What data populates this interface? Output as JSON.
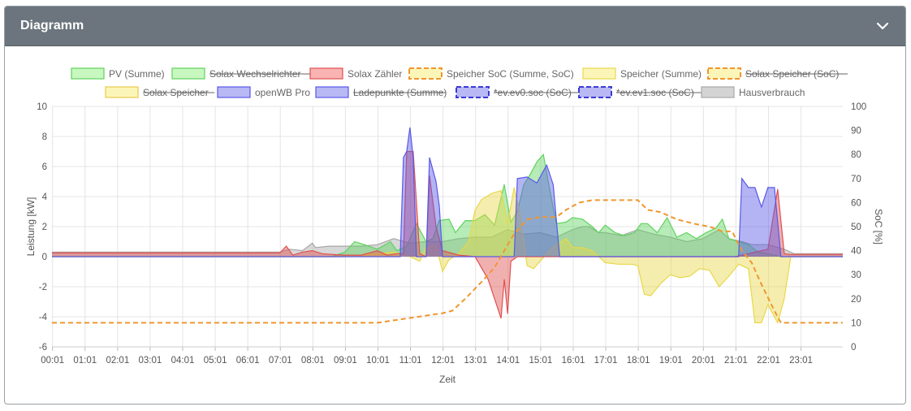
{
  "card": {
    "title": "Diagramm",
    "toggle_icon": "chevron-down-icon"
  },
  "colors": {
    "header_bg": "#6c757d",
    "pv": "#5fd35f",
    "speicher": "#e8d84a",
    "soc": "#f0962e",
    "zaehler": "#e05050",
    "openwb": "#5858e8",
    "hausverbrauch": "#a8a8a8"
  },
  "chart_data": {
    "type": "area",
    "xlabel": "Zeit",
    "ylabel": "Leistung [kW]",
    "y2label": "SoC [%]",
    "ylim": [
      -6,
      10
    ],
    "y2lim": [
      0,
      100
    ],
    "yticks": [
      "10",
      "8",
      "6",
      "4",
      "2",
      "0",
      "-2",
      "-4",
      "-6"
    ],
    "y2ticks": [
      "100",
      "90",
      "80",
      "70",
      "60",
      "50",
      "40",
      "30",
      "20",
      "10",
      "0"
    ],
    "x_ticks": [
      "00:01",
      "01:01",
      "02:01",
      "03:01",
      "04:01",
      "05:01",
      "06:01",
      "07:01",
      "08:01",
      "09:01",
      "10:01",
      "11:01",
      "12:01",
      "13:01",
      "14:01",
      "15:01",
      "16:01",
      "17:01",
      "18:01",
      "19:01",
      "20:01",
      "21:01",
      "22:01",
      "23:01"
    ],
    "x_range_hours": [
      0,
      24.3
    ],
    "grid": true,
    "legend": [
      {
        "label": "PV (Summe)",
        "fill": "#c8f7c0",
        "stroke": "#5fd35f",
        "dashed": false,
        "hidden": false
      },
      {
        "label": "Solax Wechselrichter",
        "fill": "#c8f7c0",
        "stroke": "#5fd35f",
        "dashed": false,
        "hidden": true
      },
      {
        "label": "Solax Zähler",
        "fill": "#f9b3b3",
        "stroke": "#e05050",
        "dashed": false,
        "hidden": false
      },
      {
        "label": "Speicher SoC (Summe, SoC)",
        "fill": "#fbf6b8",
        "stroke": "#f0962e",
        "dashed": true,
        "hidden": false
      },
      {
        "label": "Speicher (Summe)",
        "fill": "#fbf6b8",
        "stroke": "#e8d84a",
        "dashed": false,
        "hidden": false
      },
      {
        "label": "Solax Speicher (SoC)",
        "fill": "#fbf6b8",
        "stroke": "#f0962e",
        "dashed": true,
        "hidden": true
      },
      {
        "label": "Solax Speicher",
        "fill": "#fbf6b8",
        "stroke": "#e8c84a",
        "dashed": false,
        "hidden": true
      },
      {
        "label": "openWB Pro",
        "fill": "#b8b8f4",
        "stroke": "#5858e8",
        "dashed": false,
        "hidden": false
      },
      {
        "label": "Ladepunkte (Summe)",
        "fill": "#b8b8f4",
        "stroke": "#5858e8",
        "dashed": false,
        "hidden": true
      },
      {
        "label": "*ev.ev0.soc (SoC)",
        "fill": "#b8b8f4",
        "stroke": "#3a3ad8",
        "dashed": true,
        "hidden": true
      },
      {
        "label": "*ev.ev1.soc (SoC)",
        "fill": "#b8b8f4",
        "stroke": "#3a3ad8",
        "dashed": true,
        "hidden": true
      },
      {
        "label": "Hausverbrauch",
        "fill": "#d4d4d4",
        "stroke": "#a8a8a8",
        "dashed": false,
        "hidden": false
      }
    ],
    "series": [
      {
        "name": "Hausverbrauch",
        "unit": "kW",
        "color": "#a8a8a8",
        "points": [
          [
            0,
            0.3
          ],
          [
            7,
            0.3
          ],
          [
            7.3,
            0.5
          ],
          [
            7.7,
            0.4
          ],
          [
            8.0,
            0.9
          ],
          [
            8.1,
            0.6
          ],
          [
            8.5,
            0.7
          ],
          [
            9.0,
            0.7
          ],
          [
            9.5,
            0.7
          ],
          [
            10,
            0.8
          ],
          [
            10.5,
            1.2
          ],
          [
            11,
            0.9
          ],
          [
            11.5,
            1.0
          ],
          [
            12,
            1.0
          ],
          [
            12.5,
            1.2
          ],
          [
            13,
            1.3
          ],
          [
            13.5,
            1.3
          ],
          [
            14,
            1.8
          ],
          [
            14.5,
            1.5
          ],
          [
            15,
            1.6
          ],
          [
            15.5,
            1.3
          ],
          [
            16,
            1.8
          ],
          [
            16.3,
            2.0
          ],
          [
            16.5,
            2.0
          ],
          [
            16.8,
            1.6
          ],
          [
            17,
            1.6
          ],
          [
            17.5,
            1.4
          ],
          [
            18,
            1.8
          ],
          [
            18.5,
            1.5
          ],
          [
            19,
            1.3
          ],
          [
            19.5,
            1.0
          ],
          [
            20,
            1.2
          ],
          [
            20.5,
            1.8
          ],
          [
            20.8,
            1.2
          ],
          [
            21.2,
            1.0
          ],
          [
            21.5,
            0.8
          ],
          [
            22,
            0.8
          ],
          [
            22.5,
            0.5
          ],
          [
            22.8,
            0.2
          ],
          [
            24.3,
            0.2
          ]
        ]
      },
      {
        "name": "PV (Summe)",
        "unit": "kW",
        "color": "#5fd35f",
        "points": [
          [
            0,
            0
          ],
          [
            8.6,
            0
          ],
          [
            9.0,
            0.3
          ],
          [
            9.3,
            1.0
          ],
          [
            9.6,
            0.8
          ],
          [
            10,
            0.5
          ],
          [
            10.4,
            1.0
          ],
          [
            10.6,
            0.4
          ],
          [
            10.9,
            0.7
          ],
          [
            11.2,
            2.2
          ],
          [
            11.5,
            1.0
          ],
          [
            11.7,
            1.2
          ],
          [
            11.9,
            2.4
          ],
          [
            12.2,
            2.5
          ],
          [
            12.4,
            1.6
          ],
          [
            12.7,
            2.4
          ],
          [
            13.0,
            2.4
          ],
          [
            13.3,
            2.8
          ],
          [
            13.6,
            2.1
          ],
          [
            13.9,
            4.8
          ],
          [
            14.1,
            2.3
          ],
          [
            14.3,
            3.0
          ],
          [
            14.5,
            4.8
          ],
          [
            14.7,
            5.5
          ],
          [
            14.9,
            6.3
          ],
          [
            15.1,
            6.8
          ],
          [
            15.3,
            4.4
          ],
          [
            15.5,
            2.2
          ],
          [
            15.8,
            2.3
          ],
          [
            16.0,
            2.6
          ],
          [
            16.3,
            2.5
          ],
          [
            16.6,
            2.0
          ],
          [
            16.8,
            1.6
          ],
          [
            17.0,
            2.1
          ],
          [
            17.3,
            1.6
          ],
          [
            17.6,
            1.4
          ],
          [
            17.9,
            1.6
          ],
          [
            18.1,
            2.2
          ],
          [
            18.3,
            2.2
          ],
          [
            18.6,
            1.6
          ],
          [
            18.9,
            2.6
          ],
          [
            19.2,
            1.3
          ],
          [
            19.5,
            1.6
          ],
          [
            19.8,
            1.2
          ],
          [
            20.1,
            1.6
          ],
          [
            20.4,
            1.9
          ],
          [
            20.6,
            2.5
          ],
          [
            20.8,
            1.2
          ],
          [
            21.1,
            1.0
          ],
          [
            21.4,
            0.8
          ],
          [
            21.7,
            0.3
          ],
          [
            22.0,
            0.2
          ],
          [
            22.4,
            0
          ],
          [
            24.3,
            0
          ]
        ]
      },
      {
        "name": "Speicher (Summe)",
        "unit": "kW",
        "color": "#e8d84a",
        "points": [
          [
            0,
            0
          ],
          [
            9.0,
            0
          ],
          [
            9.5,
            0.1
          ],
          [
            10,
            0.2
          ],
          [
            10.5,
            0.3
          ],
          [
            11,
            0
          ],
          [
            11.3,
            -0.3
          ],
          [
            11.5,
            0.6
          ],
          [
            11.8,
            0.8
          ],
          [
            12,
            -1.0
          ],
          [
            12.2,
            -0.2
          ],
          [
            12.5,
            0.2
          ],
          [
            12.8,
            1.0
          ],
          [
            13.0,
            3.1
          ],
          [
            13.2,
            3.8
          ],
          [
            13.5,
            4.2
          ],
          [
            13.8,
            4.4
          ],
          [
            14.0,
            2.2
          ],
          [
            14.2,
            4.6
          ],
          [
            14.4,
            2.6
          ],
          [
            14.6,
            -0.6
          ],
          [
            14.8,
            -0.8
          ],
          [
            15.0,
            -0.3
          ],
          [
            15.2,
            0.2
          ],
          [
            15.5,
            0.8
          ],
          [
            15.8,
            1.2
          ],
          [
            16.0,
            0.6
          ],
          [
            16.3,
            0.6
          ],
          [
            16.6,
            0.4
          ],
          [
            17.0,
            -0.4
          ],
          [
            17.4,
            -0.5
          ],
          [
            17.8,
            -0.5
          ],
          [
            18.0,
            -0.6
          ],
          [
            18.2,
            -2.5
          ],
          [
            18.4,
            -2.6
          ],
          [
            18.7,
            -1.8
          ],
          [
            19.0,
            -1.2
          ],
          [
            19.3,
            -1.4
          ],
          [
            19.6,
            -1.3
          ],
          [
            19.9,
            -0.8
          ],
          [
            20.2,
            -0.9
          ],
          [
            20.5,
            -2.0
          ],
          [
            20.8,
            -1.3
          ],
          [
            21.1,
            -0.5
          ],
          [
            21.4,
            -0.8
          ],
          [
            21.6,
            -4.4
          ],
          [
            21.8,
            -4.4
          ],
          [
            22.0,
            -3.2
          ],
          [
            22.3,
            -4.4
          ],
          [
            22.5,
            -2.8
          ],
          [
            22.7,
            0
          ],
          [
            24.3,
            0
          ]
        ]
      },
      {
        "name": "Solax Zähler",
        "unit": "kW",
        "color": "#e05050",
        "points": [
          [
            0,
            0.25
          ],
          [
            7.0,
            0.25
          ],
          [
            7.2,
            0.7
          ],
          [
            7.4,
            0.1
          ],
          [
            7.7,
            0.3
          ],
          [
            8.0,
            0.4
          ],
          [
            8.3,
            0.2
          ],
          [
            8.6,
            0.15
          ],
          [
            9.0,
            0.1
          ],
          [
            9.5,
            0.1
          ],
          [
            10,
            0.4
          ],
          [
            10.3,
            0.1
          ],
          [
            10.6,
            0.2
          ],
          [
            10.8,
            0.2
          ],
          [
            10.9,
            7.0
          ],
          [
            11.1,
            7.0
          ],
          [
            11.3,
            0.2
          ],
          [
            11.5,
            0
          ],
          [
            11.6,
            5.4
          ],
          [
            11.8,
            2.0
          ],
          [
            12.0,
            0.4
          ],
          [
            12.5,
            0.1
          ],
          [
            13.0,
            0
          ],
          [
            13.4,
            -1.5
          ],
          [
            13.6,
            -2.8
          ],
          [
            13.8,
            -4.1
          ],
          [
            13.9,
            -1.5
          ],
          [
            14.0,
            -3.8
          ],
          [
            14.1,
            -0.3
          ],
          [
            14.3,
            0
          ],
          [
            15,
            0
          ],
          [
            16,
            0
          ],
          [
            17,
            0
          ],
          [
            18,
            0
          ],
          [
            19,
            0
          ],
          [
            20,
            0
          ],
          [
            21,
            0
          ],
          [
            22.0,
            0.5
          ],
          [
            22.3,
            4.5
          ],
          [
            22.5,
            0.2
          ],
          [
            22.7,
            0.15
          ],
          [
            24.3,
            0.15
          ]
        ]
      },
      {
        "name": "openWB Pro",
        "unit": "kW",
        "color": "#5858e8",
        "points": [
          [
            0,
            0
          ],
          [
            10.7,
            0
          ],
          [
            10.8,
            6.6
          ],
          [
            10.9,
            7.0
          ],
          [
            11.0,
            8.6
          ],
          [
            11.1,
            6.6
          ],
          [
            11.2,
            0
          ],
          [
            11.5,
            0
          ],
          [
            11.6,
            6.6
          ],
          [
            11.8,
            5.0
          ],
          [
            11.9,
            3.4
          ],
          [
            12.0,
            0
          ],
          [
            14.2,
            0
          ],
          [
            14.3,
            5.2
          ],
          [
            14.6,
            5.3
          ],
          [
            14.9,
            4.9
          ],
          [
            15.2,
            6.1
          ],
          [
            15.4,
            4.8
          ],
          [
            15.6,
            0
          ],
          [
            21.1,
            0
          ],
          [
            21.2,
            5.2
          ],
          [
            21.4,
            4.6
          ],
          [
            21.6,
            4.6
          ],
          [
            21.8,
            3.3
          ],
          [
            22.0,
            4.6
          ],
          [
            22.2,
            4.6
          ],
          [
            22.4,
            0
          ],
          [
            24.3,
            0
          ]
        ]
      },
      {
        "name": "Speicher SoC (Summe, SoC)",
        "unit": "%",
        "color": "#f0962e",
        "dashed": true,
        "points": [
          [
            0,
            10
          ],
          [
            10,
            10
          ],
          [
            10.5,
            11
          ],
          [
            11,
            12
          ],
          [
            11.5,
            13
          ],
          [
            12,
            14
          ],
          [
            12.3,
            15
          ],
          [
            12.7,
            20
          ],
          [
            13.2,
            27
          ],
          [
            13.6,
            33
          ],
          [
            13.9,
            40
          ],
          [
            14.2,
            47
          ],
          [
            14.6,
            53
          ],
          [
            15,
            54
          ],
          [
            15.5,
            54
          ],
          [
            15.8,
            57
          ],
          [
            16.2,
            60
          ],
          [
            16.6,
            61
          ],
          [
            17.5,
            61
          ],
          [
            18,
            61
          ],
          [
            18.3,
            57
          ],
          [
            18.7,
            56
          ],
          [
            19.2,
            53
          ],
          [
            19.5,
            52
          ],
          [
            19.8,
            51
          ],
          [
            20.2,
            50
          ],
          [
            20.6,
            48
          ],
          [
            20.9,
            48
          ],
          [
            21.2,
            40
          ],
          [
            21.5,
            35
          ],
          [
            21.8,
            26
          ],
          [
            22.2,
            15
          ],
          [
            22.4,
            10
          ],
          [
            23,
            10
          ],
          [
            24.3,
            10
          ]
        ]
      }
    ]
  }
}
